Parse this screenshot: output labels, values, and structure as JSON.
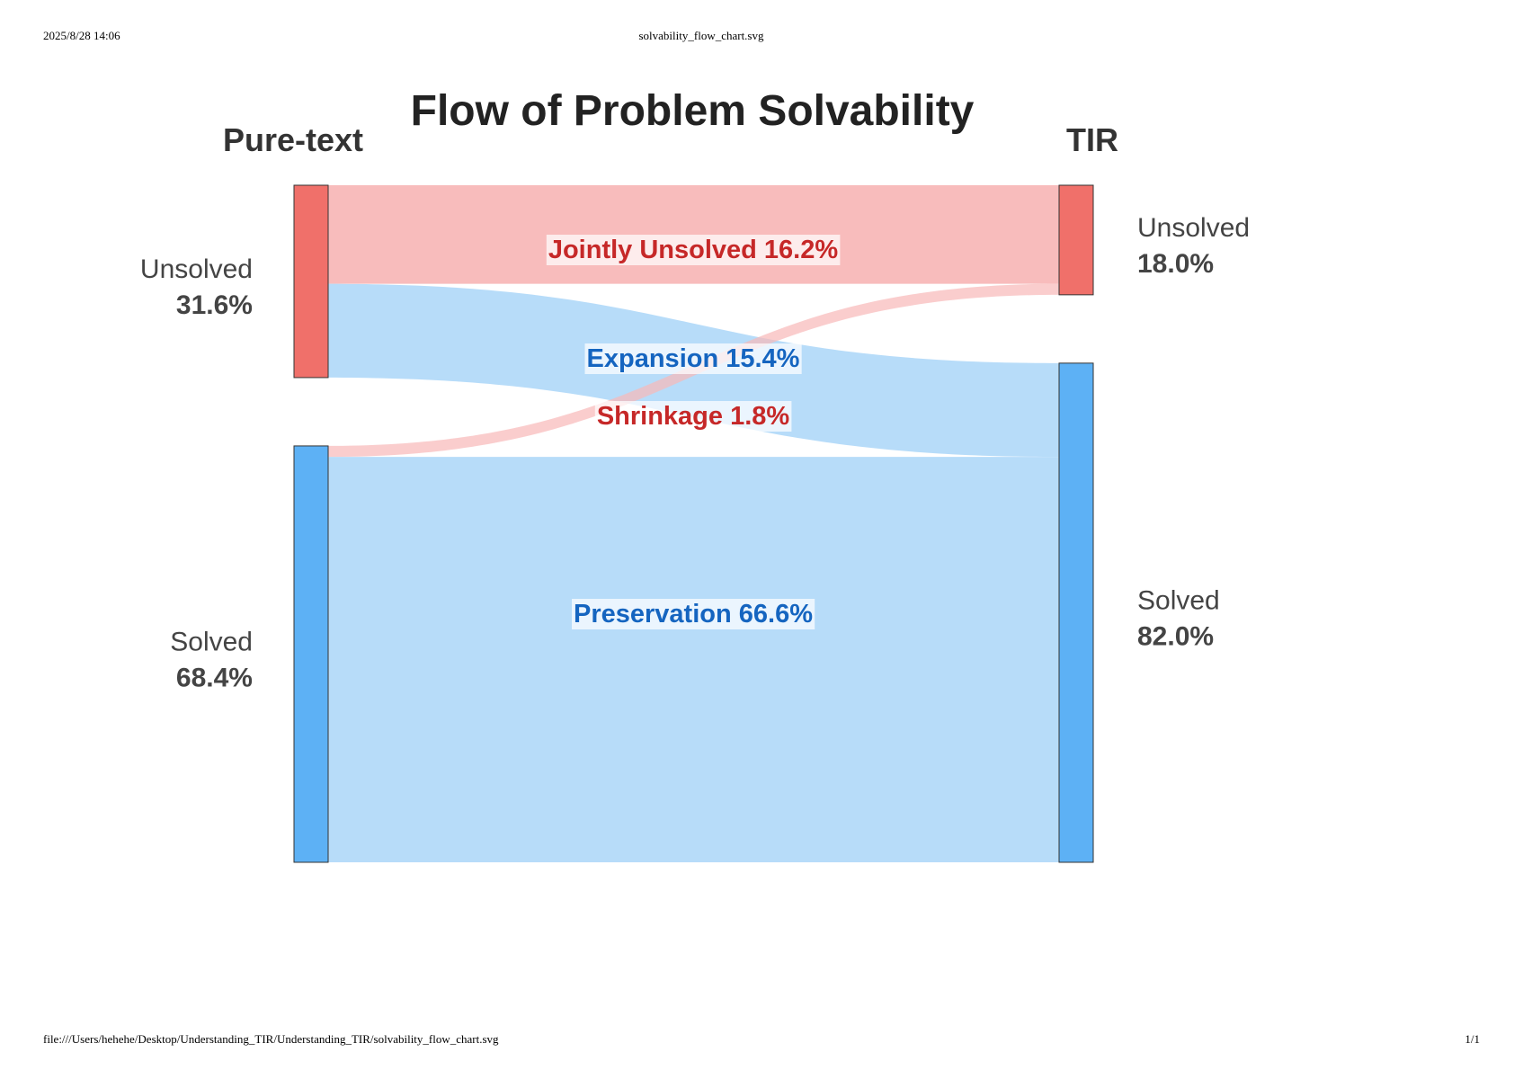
{
  "page_header": {
    "datetime": "2025/8/28 14:06",
    "filename": "solvability_flow_chart.svg"
  },
  "page_footer": {
    "path": "file:///Users/hehehe/Desktop/Understanding_TIR/Understanding_TIR/solvability_flow_chart.svg",
    "page": "1/1"
  },
  "colors": {
    "unsolved_node": "#F0706A",
    "solved_node": "#5DB1F5",
    "unsolved_flow": "#F8B8B8",
    "solved_flow": "#B3DAF9",
    "unsolved_label": "#C62828",
    "solved_label": "#1565C0"
  },
  "chart_data": {
    "type": "sankey",
    "title": "Flow of Problem Solvability",
    "left_column": {
      "label": "Pure-text",
      "nodes": [
        {
          "id": "pt_unsolved",
          "name": "Unsolved",
          "value_label": "31.6%",
          "value": 31.6,
          "status": "unsolved"
        },
        {
          "id": "pt_solved",
          "name": "Solved",
          "value_label": "68.4%",
          "value": 68.4,
          "status": "solved"
        }
      ]
    },
    "right_column": {
      "label": "TIR",
      "nodes": [
        {
          "id": "tir_unsolved",
          "name": "Unsolved",
          "value_label": "18.0%",
          "value": 18.0,
          "status": "unsolved"
        },
        {
          "id": "tir_solved",
          "name": "Solved",
          "value_label": "82.0%",
          "value": 82.0,
          "status": "solved"
        }
      ]
    },
    "flows": [
      {
        "source": "pt_unsolved",
        "target": "tir_unsolved",
        "value": 16.2,
        "label": "Jointly Unsolved 16.2%",
        "status": "unsolved"
      },
      {
        "source": "pt_unsolved",
        "target": "tir_solved",
        "value": 15.4,
        "label": "Expansion 15.4%",
        "status": "solved"
      },
      {
        "source": "pt_solved",
        "target": "tir_unsolved",
        "value": 1.8,
        "label": "Shrinkage 1.8%",
        "status": "unsolved"
      },
      {
        "source": "pt_solved",
        "target": "tir_solved",
        "value": 66.6,
        "label": "Preservation 66.6%",
        "status": "solved"
      }
    ]
  }
}
